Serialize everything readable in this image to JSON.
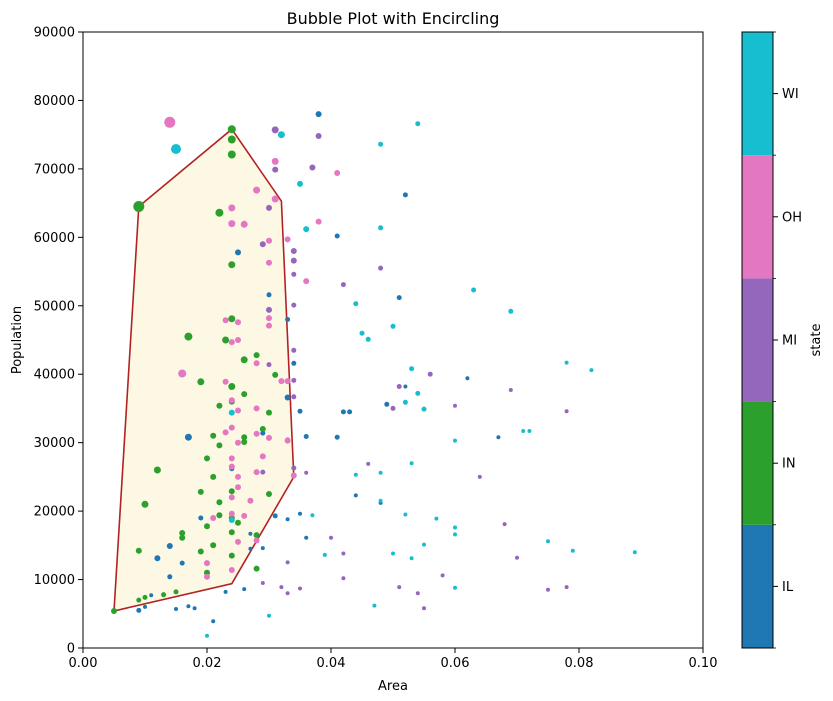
{
  "chart_data": {
    "type": "scatter",
    "title": "Bubble Plot with Encircling",
    "xlabel": "Area",
    "ylabel": "Population",
    "xlim": [
      0,
      0.1
    ],
    "ylim": [
      0,
      90000
    ],
    "xticks": [
      0,
      0.02,
      0.04,
      0.06,
      0.08,
      0.1
    ],
    "xtick_labels": [
      "0.00",
      "0.02",
      "0.04",
      "0.06",
      "0.08",
      "0.10"
    ],
    "yticks": [
      0,
      10000,
      20000,
      30000,
      40000,
      50000,
      60000,
      70000,
      80000,
      90000
    ],
    "ytick_labels": [
      "0",
      "10000",
      "20000",
      "30000",
      "40000",
      "50000",
      "60000",
      "70000",
      "80000",
      "90000"
    ],
    "colorbar": {
      "label": "state",
      "categories": [
        "IL",
        "IN",
        "MI",
        "OH",
        "WI"
      ],
      "colors": [
        "#1f77b4",
        "#2ca02c",
        "#9467bd",
        "#e377c2",
        "#17becf"
      ]
    },
    "encircle": {
      "face_color": "#fdf8e4",
      "edge_color": "#b22222",
      "points": [
        [
          0.005,
          5400
        ],
        [
          0.009,
          64500
        ],
        [
          0.024,
          75800
        ],
        [
          0.032,
          65300
        ],
        [
          0.034,
          25000
        ],
        [
          0.024,
          9400
        ],
        [
          0.005,
          5400
        ]
      ]
    },
    "series": [
      {
        "name": "IL",
        "points": [
          [
            0.038,
            78000,
            3
          ],
          [
            0.052,
            66200,
            2.5
          ],
          [
            0.041,
            60200,
            2.5
          ],
          [
            0.025,
            57800,
            3
          ],
          [
            0.051,
            51200,
            2.5
          ],
          [
            0.03,
            51600,
            2.5
          ],
          [
            0.033,
            48000,
            2.5
          ],
          [
            0.034,
            41600,
            2.5
          ],
          [
            0.062,
            39400,
            2
          ],
          [
            0.052,
            38200,
            2
          ],
          [
            0.033,
            36600,
            3
          ],
          [
            0.049,
            35600,
            2.5
          ],
          [
            0.043,
            34500,
            2.5
          ],
          [
            0.042,
            34500,
            2.5
          ],
          [
            0.035,
            34600,
            2.5
          ],
          [
            0.067,
            30800,
            2
          ],
          [
            0.041,
            30800,
            2.5
          ],
          [
            0.017,
            30800,
            3.5
          ],
          [
            0.029,
            31400,
            2.5
          ],
          [
            0.024,
            26200,
            2.5
          ],
          [
            0.031,
            19300,
            2.5
          ],
          [
            0.019,
            19000,
            2.5
          ],
          [
            0.014,
            14900,
            3
          ],
          [
            0.012,
            13100,
            3
          ],
          [
            0.016,
            12400,
            2.5
          ],
          [
            0.027,
            14500,
            2
          ],
          [
            0.029,
            14600,
            2
          ],
          [
            0.014,
            10400,
            2.5
          ],
          [
            0.011,
            7700,
            2
          ],
          [
            0.013,
            7700,
            2
          ],
          [
            0.009,
            5500,
            2.5
          ],
          [
            0.01,
            6000,
            2
          ],
          [
            0.015,
            5700,
            2
          ],
          [
            0.017,
            6100,
            2
          ],
          [
            0.018,
            5800,
            2
          ],
          [
            0.023,
            8200,
            2
          ],
          [
            0.026,
            8600,
            2
          ],
          [
            0.033,
            18800,
            2
          ],
          [
            0.044,
            22300,
            2
          ],
          [
            0.036,
            16100,
            2
          ],
          [
            0.048,
            21200,
            2
          ],
          [
            0.035,
            19600,
            2
          ],
          [
            0.021,
            3900,
            2
          ],
          [
            0.027,
            16700,
            2
          ],
          [
            0.036,
            30900,
            2.5
          ]
        ]
      },
      {
        "name": "IN",
        "points": [
          [
            0.009,
            64500,
            5.5
          ],
          [
            0.024,
            75800,
            4
          ],
          [
            0.024,
            74300,
            4
          ],
          [
            0.024,
            72100,
            4
          ],
          [
            0.022,
            63600,
            4
          ],
          [
            0.024,
            56000,
            3.5
          ],
          [
            0.017,
            45500,
            4
          ],
          [
            0.023,
            45000,
            3.5
          ],
          [
            0.024,
            48100,
            3.5
          ],
          [
            0.026,
            42100,
            3.5
          ],
          [
            0.028,
            42800,
            3
          ],
          [
            0.019,
            38900,
            3.5
          ],
          [
            0.024,
            38200,
            3.5
          ],
          [
            0.026,
            37100,
            3
          ],
          [
            0.024,
            36000,
            3
          ],
          [
            0.022,
            35400,
            3
          ],
          [
            0.03,
            34400,
            3
          ],
          [
            0.031,
            39900,
            3
          ],
          [
            0.021,
            31000,
            3
          ],
          [
            0.026,
            30800,
            3
          ],
          [
            0.029,
            32000,
            3
          ],
          [
            0.022,
            29600,
            3
          ],
          [
            0.012,
            26000,
            3.5
          ],
          [
            0.02,
            27700,
            3
          ],
          [
            0.021,
            25000,
            3
          ],
          [
            0.024,
            22900,
            3
          ],
          [
            0.03,
            22500,
            3
          ],
          [
            0.019,
            22800,
            3
          ],
          [
            0.01,
            21000,
            3.5
          ],
          [
            0.016,
            16800,
            3
          ],
          [
            0.016,
            16100,
            3
          ],
          [
            0.022,
            19400,
            3
          ],
          [
            0.024,
            19000,
            3
          ],
          [
            0.025,
            18300,
            3
          ],
          [
            0.02,
            17800,
            3
          ],
          [
            0.024,
            16900,
            3
          ],
          [
            0.028,
            16500,
            3
          ],
          [
            0.021,
            15000,
            3
          ],
          [
            0.009,
            14200,
            3
          ],
          [
            0.019,
            14100,
            3
          ],
          [
            0.024,
            13500,
            3
          ],
          [
            0.028,
            11600,
            3
          ],
          [
            0.02,
            11000,
            3
          ],
          [
            0.015,
            8200,
            2.5
          ],
          [
            0.013,
            7800,
            2.5
          ],
          [
            0.009,
            7000,
            2.5
          ],
          [
            0.01,
            7400,
            2.5
          ],
          [
            0.005,
            5400,
            3
          ],
          [
            0.022,
            21300,
            3
          ],
          [
            0.026,
            30100,
            3
          ]
        ]
      },
      {
        "name": "MI",
        "points": [
          [
            0.031,
            75700,
            3.5
          ],
          [
            0.038,
            74800,
            3
          ],
          [
            0.031,
            69900,
            3
          ],
          [
            0.037,
            70200,
            3
          ],
          [
            0.03,
            64300,
            3
          ],
          [
            0.034,
            58000,
            3
          ],
          [
            0.034,
            56600,
            3
          ],
          [
            0.029,
            59000,
            3
          ],
          [
            0.042,
            53100,
            2.5
          ],
          [
            0.034,
            54600,
            2.5
          ],
          [
            0.034,
            50100,
            2.5
          ],
          [
            0.03,
            49400,
            3
          ],
          [
            0.048,
            55500,
            2.5
          ],
          [
            0.034,
            43500,
            2.5
          ],
          [
            0.051,
            38200,
            2.5
          ],
          [
            0.069,
            37700,
            2
          ],
          [
            0.056,
            40000,
            2.5
          ],
          [
            0.03,
            41400,
            2.5
          ],
          [
            0.034,
            39100,
            2.5
          ],
          [
            0.078,
            34600,
            2
          ],
          [
            0.06,
            35400,
            2
          ],
          [
            0.05,
            35000,
            2.5
          ],
          [
            0.034,
            36700,
            2.5
          ],
          [
            0.033,
            30400,
            2.5
          ],
          [
            0.034,
            26300,
            2.5
          ],
          [
            0.064,
            25000,
            2
          ],
          [
            0.046,
            26900,
            2
          ],
          [
            0.029,
            25700,
            2.5
          ],
          [
            0.068,
            18100,
            2
          ],
          [
            0.04,
            16100,
            2
          ],
          [
            0.07,
            13200,
            2
          ],
          [
            0.058,
            10600,
            2
          ],
          [
            0.042,
            10200,
            2
          ],
          [
            0.032,
            8900,
            2
          ],
          [
            0.051,
            8900,
            2
          ],
          [
            0.075,
            8500,
            2
          ],
          [
            0.054,
            8000,
            2
          ],
          [
            0.078,
            8900,
            2
          ],
          [
            0.055,
            5800,
            2
          ],
          [
            0.033,
            12500,
            2
          ],
          [
            0.029,
            9500,
            2
          ],
          [
            0.042,
            13800,
            2
          ],
          [
            0.035,
            8700,
            2
          ],
          [
            0.033,
            8000,
            2
          ],
          [
            0.036,
            25600,
            2
          ]
        ]
      },
      {
        "name": "OH",
        "points": [
          [
            0.014,
            76800,
            5.5
          ],
          [
            0.031,
            71100,
            3.5
          ],
          [
            0.041,
            69400,
            3
          ],
          [
            0.028,
            66900,
            3.5
          ],
          [
            0.031,
            65600,
            3.5
          ],
          [
            0.024,
            64300,
            3.5
          ],
          [
            0.024,
            62000,
            3.5
          ],
          [
            0.026,
            61900,
            3.5
          ],
          [
            0.038,
            62300,
            3
          ],
          [
            0.033,
            59700,
            3
          ],
          [
            0.03,
            59500,
            3
          ],
          [
            0.036,
            53600,
            3
          ],
          [
            0.03,
            56300,
            3
          ],
          [
            0.023,
            47900,
            3
          ],
          [
            0.025,
            47600,
            3
          ],
          [
            0.03,
            48200,
            3
          ],
          [
            0.03,
            47100,
            3
          ],
          [
            0.016,
            40100,
            4
          ],
          [
            0.024,
            44700,
            3
          ],
          [
            0.025,
            45000,
            3
          ],
          [
            0.028,
            41600,
            3
          ],
          [
            0.032,
            39000,
            3
          ],
          [
            0.023,
            38900,
            3
          ],
          [
            0.024,
            36200,
            3
          ],
          [
            0.033,
            39000,
            3
          ],
          [
            0.025,
            34700,
            3
          ],
          [
            0.028,
            35000,
            3
          ],
          [
            0.024,
            32200,
            3
          ],
          [
            0.023,
            31500,
            3
          ],
          [
            0.028,
            31300,
            3
          ],
          [
            0.03,
            30700,
            3
          ],
          [
            0.025,
            30000,
            3
          ],
          [
            0.033,
            30300,
            3
          ],
          [
            0.024,
            27700,
            3
          ],
          [
            0.024,
            26500,
            3
          ],
          [
            0.025,
            25000,
            3
          ],
          [
            0.028,
            25700,
            3
          ],
          [
            0.034,
            25200,
            3
          ],
          [
            0.025,
            23500,
            3
          ],
          [
            0.024,
            22000,
            3
          ],
          [
            0.027,
            21500,
            3
          ],
          [
            0.024,
            19600,
            3
          ],
          [
            0.026,
            19300,
            3
          ],
          [
            0.025,
            15500,
            3
          ],
          [
            0.028,
            15700,
            3
          ],
          [
            0.02,
            12400,
            3
          ],
          [
            0.024,
            11400,
            3
          ],
          [
            0.02,
            10400,
            3
          ],
          [
            0.021,
            19000,
            3
          ],
          [
            0.029,
            28000,
            3
          ]
        ]
      },
      {
        "name": "WI",
        "points": [
          [
            0.015,
            72900,
            5
          ],
          [
            0.032,
            75000,
            3.5
          ],
          [
            0.054,
            76600,
            2.5
          ],
          [
            0.048,
            73600,
            2.5
          ],
          [
            0.035,
            67800,
            3
          ],
          [
            0.036,
            61200,
            3
          ],
          [
            0.048,
            61400,
            2.5
          ],
          [
            0.063,
            52300,
            2.5
          ],
          [
            0.069,
            49200,
            2.5
          ],
          [
            0.044,
            50300,
            2.5
          ],
          [
            0.045,
            46000,
            2.5
          ],
          [
            0.05,
            47000,
            2.5
          ],
          [
            0.046,
            45100,
            2.5
          ],
          [
            0.053,
            40800,
            2.5
          ],
          [
            0.078,
            41700,
            2
          ],
          [
            0.082,
            40600,
            2
          ],
          [
            0.054,
            37200,
            2.5
          ],
          [
            0.052,
            35900,
            2.5
          ],
          [
            0.055,
            34900,
            2.5
          ],
          [
            0.071,
            31700,
            2
          ],
          [
            0.072,
            31700,
            2
          ],
          [
            0.06,
            30300,
            2
          ],
          [
            0.044,
            25300,
            2
          ],
          [
            0.053,
            27000,
            2
          ],
          [
            0.048,
            25600,
            2
          ],
          [
            0.052,
            19500,
            2
          ],
          [
            0.057,
            18900,
            2
          ],
          [
            0.06,
            17600,
            2
          ],
          [
            0.048,
            21500,
            2
          ],
          [
            0.06,
            16600,
            2
          ],
          [
            0.075,
            15600,
            2
          ],
          [
            0.079,
            14200,
            2
          ],
          [
            0.089,
            14000,
            2
          ],
          [
            0.05,
            13800,
            2
          ],
          [
            0.055,
            15100,
            2
          ],
          [
            0.053,
            13100,
            2
          ],
          [
            0.039,
            13600,
            2
          ],
          [
            0.06,
            8800,
            2
          ],
          [
            0.047,
            6200,
            2
          ],
          [
            0.03,
            4700,
            2
          ],
          [
            0.02,
            1800,
            2
          ],
          [
            0.024,
            34400,
            3
          ],
          [
            0.024,
            18700,
            3
          ],
          [
            0.037,
            19400,
            2
          ]
        ]
      }
    ]
  }
}
